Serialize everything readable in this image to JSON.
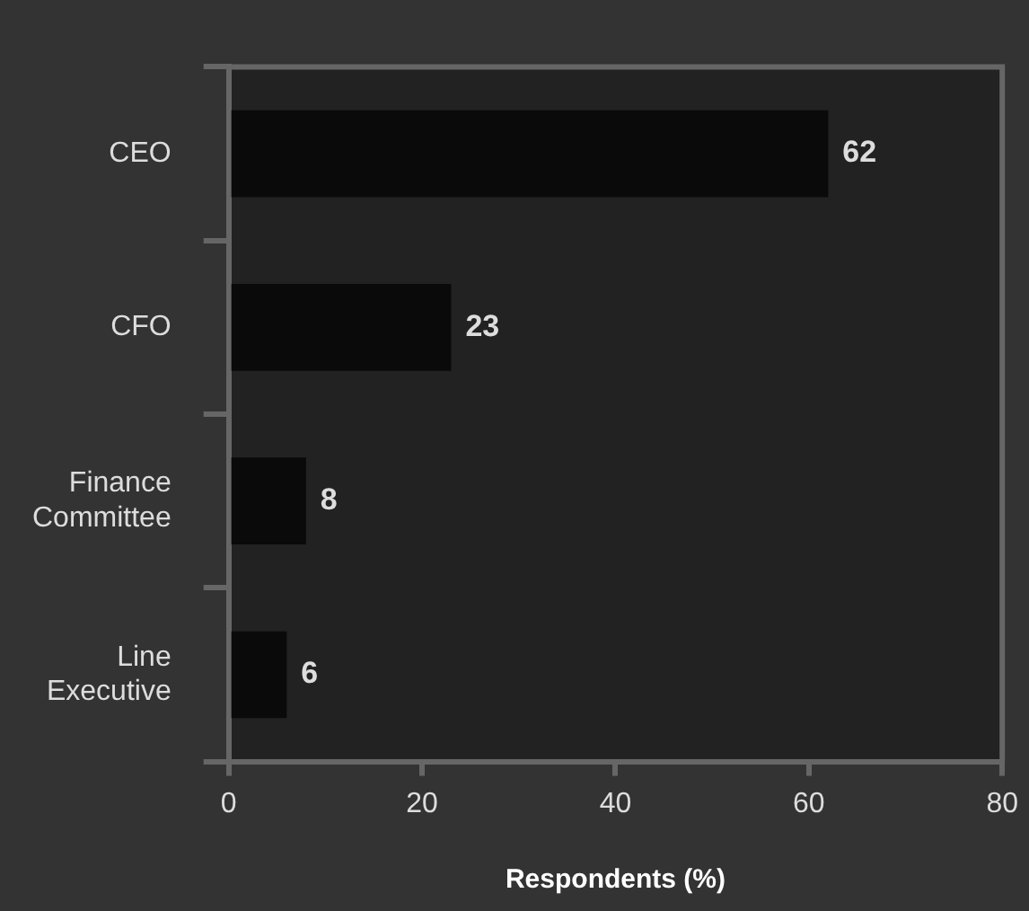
{
  "chart_data": {
    "type": "bar",
    "orientation": "horizontal",
    "categories": [
      "CEO",
      "CFO",
      "Finance Committee",
      "Line Executive"
    ],
    "values": [
      62,
      23,
      8,
      6
    ],
    "color": "#0a0a0a",
    "xlabel": "Respondents (%)",
    "xlim": [
      0,
      80
    ],
    "xticks": [
      0,
      20,
      40,
      60,
      80
    ],
    "data_labels": true,
    "grid": false,
    "legend": false
  }
}
